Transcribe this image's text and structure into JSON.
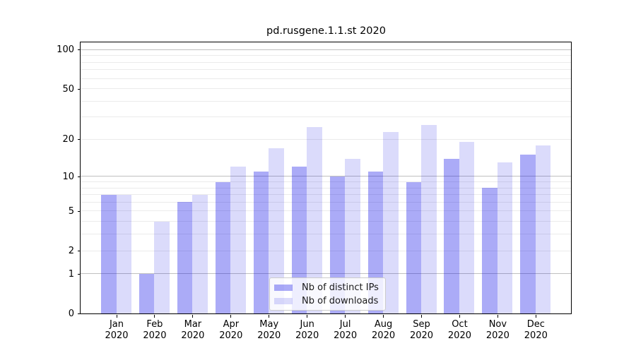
{
  "chart_data": {
    "type": "bar",
    "title": "pd.rusgene.1.1.st 2020",
    "scale": "log1p",
    "categories": [
      "Jan",
      "Feb",
      "Mar",
      "Apr",
      "May",
      "Jun",
      "Jul",
      "Aug",
      "Sep",
      "Oct",
      "Nov",
      "Dec"
    ],
    "x_year_label": "2020",
    "series": [
      {
        "name": "Nb of distinct IPs",
        "color": "rgba(0,0,230,0.33)",
        "values": [
          7,
          1,
          6,
          9,
          11,
          12,
          10,
          11,
          9,
          14,
          8,
          15
        ]
      },
      {
        "name": "Nb of downloads",
        "color": "rgba(0,0,230,0.14)",
        "values": [
          7,
          4,
          7,
          12,
          17,
          25,
          14,
          23,
          26,
          19,
          13,
          18
        ]
      }
    ],
    "y_ticks": [
      0,
      1,
      2,
      5,
      10,
      20,
      50,
      100
    ],
    "ylim": [
      0,
      115
    ],
    "xlabel": "",
    "ylabel": "",
    "grid": {
      "major_at": [
        1,
        10,
        100
      ],
      "minor_at": [
        2,
        3,
        4,
        5,
        6,
        7,
        8,
        9,
        20,
        30,
        40,
        50,
        60,
        70,
        80,
        90
      ],
      "major_color": "#c0c0c0",
      "minor_color": "#ebebeb"
    },
    "legend_position": "lower center"
  },
  "colors": {
    "spine": "#000000",
    "text": "#000000",
    "legend_border": "#cccccc",
    "legend_bg": "rgba(255,255,255,0.8)"
  }
}
